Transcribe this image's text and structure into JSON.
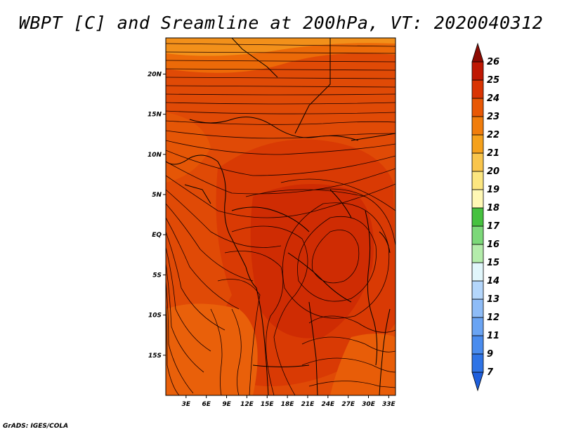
{
  "title": "WBPT [C] and Sreamline at 200hPa, VT: 2020040312",
  "credit": "GrADS: IGES/COLA",
  "map": {
    "lat_labels": [
      "20N",
      "15N",
      "10N",
      "5N",
      "EQ",
      "5S",
      "10S",
      "15S"
    ],
    "lat_values": [
      20,
      15,
      10,
      5,
      0,
      -5,
      -10,
      -15
    ],
    "lon_labels": [
      "3E",
      "6E",
      "9E",
      "12E",
      "15E",
      "18E",
      "21E",
      "24E",
      "27E",
      "30E",
      "33E"
    ],
    "lon_values": [
      3,
      6,
      9,
      12,
      15,
      18,
      21,
      24,
      27,
      30,
      33
    ],
    "lon_range": [
      0,
      34
    ],
    "lat_range": [
      -20,
      24.5
    ]
  },
  "colorbar": {
    "labels": [
      "7",
      "9",
      "11",
      "12",
      "13",
      "14",
      "15",
      "16",
      "17",
      "18",
      "19",
      "20",
      "21",
      "22",
      "23",
      "24",
      "25",
      "26"
    ],
    "colors": [
      "#1f5fdc",
      "#2f74e6",
      "#4a8cee",
      "#6aa4f3",
      "#8ebcf7",
      "#b4d6fb",
      "#e1f6fb",
      "#b4ecab",
      "#7cd879",
      "#46c13f",
      "#fff8b5",
      "#fce680",
      "#f9c54c",
      "#f5a11c",
      "#f07d0c",
      "#e85805",
      "#d93403",
      "#bf1803",
      "#8c0a02"
    ]
  }
}
